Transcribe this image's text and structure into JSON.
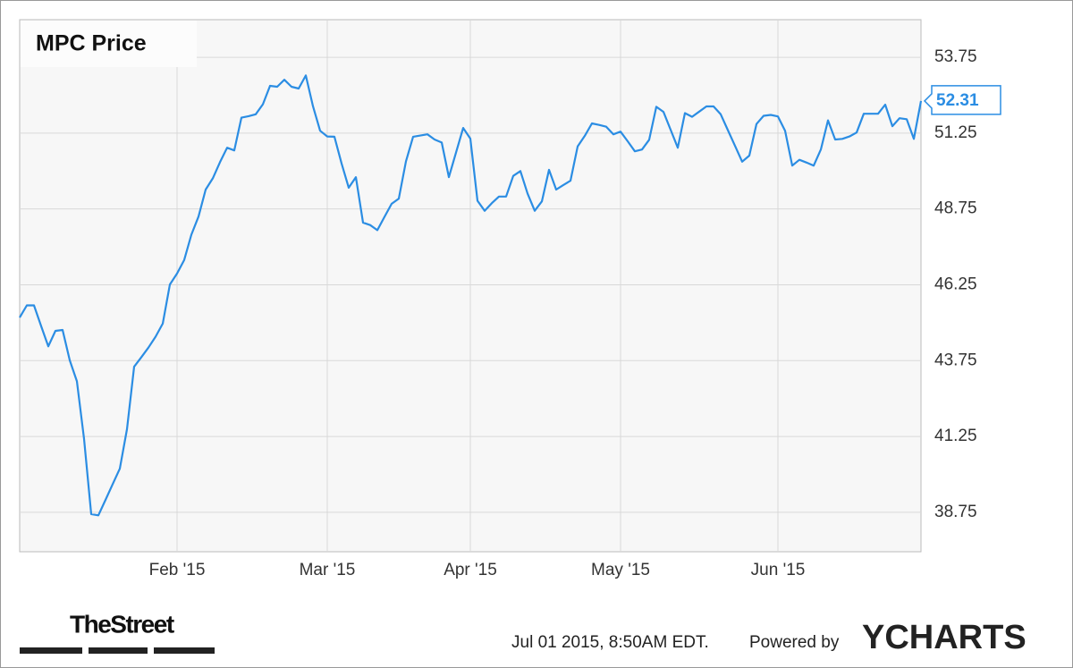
{
  "chart_data": {
    "type": "line",
    "title": "MPC Price",
    "color": "#2b8de3",
    "categories": [
      null,
      null,
      null,
      null,
      null,
      null,
      null,
      null,
      null,
      null,
      null,
      null,
      null,
      null,
      null,
      null,
      null,
      null,
      null,
      null,
      null,
      null,
      "Feb '15",
      null,
      null,
      null,
      null,
      null,
      null,
      null,
      null,
      null,
      null,
      null,
      null,
      null,
      null,
      null,
      null,
      null,
      null,
      null,
      null,
      "Mar '15",
      null,
      null,
      null,
      null,
      null,
      null,
      null,
      null,
      null,
      null,
      null,
      null,
      null,
      null,
      null,
      null,
      null,
      null,
      null,
      "Apr '15",
      null,
      null,
      null,
      null,
      null,
      null,
      null,
      null,
      null,
      null,
      null,
      null,
      null,
      null,
      null,
      null,
      null,
      null,
      null,
      null,
      "May '15",
      null,
      null,
      null,
      null,
      null,
      null,
      null,
      null,
      null,
      null,
      null,
      null,
      null,
      null,
      null,
      null,
      null,
      null,
      null,
      null,
      null,
      "Jun '15",
      null,
      null,
      null,
      null,
      null,
      null,
      null,
      null,
      null,
      null,
      null,
      null,
      null,
      null,
      null,
      null,
      null,
      null,
      null,
      null
    ],
    "values": [
      45.17,
      45.57,
      45.57,
      44.89,
      44.22,
      44.73,
      44.76,
      43.76,
      43.07,
      41.17,
      38.69,
      38.65,
      39.16,
      39.68,
      40.19,
      41.49,
      43.55,
      43.86,
      44.18,
      44.54,
      44.97,
      46.26,
      46.62,
      47.07,
      47.9,
      48.5,
      49.39,
      49.76,
      50.29,
      50.77,
      50.68,
      51.76,
      51.81,
      51.87,
      52.2,
      52.81,
      52.78,
      53.01,
      52.78,
      52.72,
      53.15,
      52.14,
      51.33,
      51.14,
      51.13,
      50.25,
      49.45,
      49.8,
      48.3,
      48.22,
      48.05,
      48.49,
      48.92,
      49.09,
      50.32,
      51.13,
      51.17,
      51.21,
      51.04,
      50.94,
      49.8,
      50.61,
      51.42,
      51.07,
      49.02,
      48.69,
      48.94,
      49.16,
      49.16,
      49.84,
      50.0,
      49.26,
      48.69,
      49.0,
      50.04,
      49.39,
      49.54,
      49.68,
      50.81,
      51.16,
      51.57,
      51.52,
      51.46,
      51.21,
      51.3,
      50.98,
      50.65,
      50.71,
      51.03,
      52.12,
      51.95,
      51.36,
      50.77,
      51.91,
      51.79,
      51.96,
      52.13,
      52.13,
      51.87,
      51.35,
      50.83,
      50.31,
      50.51,
      51.55,
      51.82,
      51.85,
      51.8,
      51.33,
      50.18,
      50.37,
      50.28,
      50.18,
      50.71,
      51.67,
      51.04,
      51.06,
      51.14,
      51.27,
      51.89,
      51.89,
      51.89,
      52.19,
      51.48,
      51.74,
      51.71,
      51.06,
      52.31
    ],
    "ylim": [
      37.45,
      54.99
    ],
    "yticks": [
      38.75,
      41.25,
      43.75,
      46.25,
      48.75,
      51.25,
      53.75
    ],
    "grid": true
  },
  "footer": {
    "brand": "TheStreet",
    "timestamp": "Jul 01 2015, 8:50AM EDT.",
    "powered": "Powered by",
    "logo": "YCHARTS"
  }
}
